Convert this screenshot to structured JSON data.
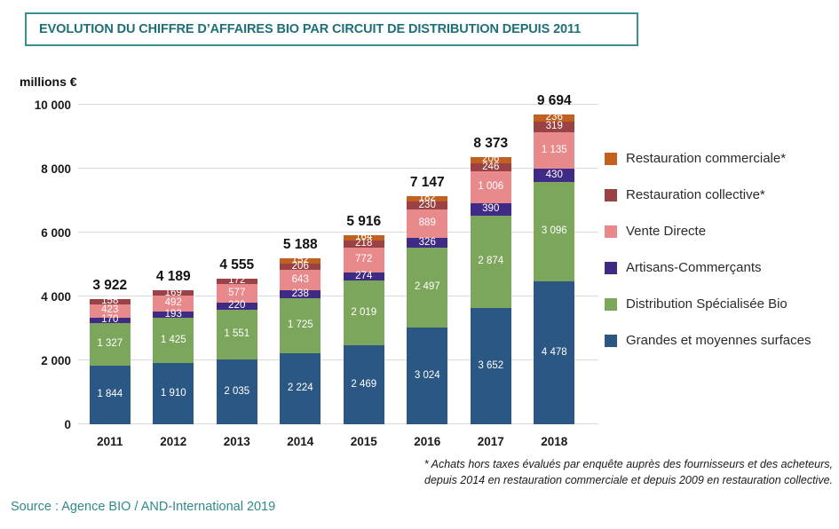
{
  "header": {
    "title": "EVOLUTION DU CHIFFRE D’AFFAIRES BIO PAR CIRCUIT DE DISTRIBUTION DEPUIS 2011"
  },
  "chart_data": {
    "type": "bar",
    "subtype": "stacked-vertical",
    "unit_label": "millions €",
    "categories": [
      "2011",
      "2012",
      "2013",
      "2014",
      "2015",
      "2016",
      "2017",
      "2018"
    ],
    "totals": [
      3922,
      4189,
      4555,
      5188,
      5916,
      7147,
      8373,
      9694
    ],
    "series": [
      {
        "name": "Grandes et moyennes surfaces",
        "color": "#2b5784",
        "values": [
          1844,
          1910,
          2035,
          2224,
          2469,
          3024,
          3652,
          4478
        ]
      },
      {
        "name": "Distribution Spécialisée Bio",
        "color": "#7ca65b",
        "values": [
          1327,
          1425,
          1551,
          1725,
          2019,
          2497,
          2874,
          3096
        ]
      },
      {
        "name": "Artisans-Commerçants",
        "color": "#3f2b86",
        "values": [
          170,
          193,
          220,
          238,
          274,
          326,
          390,
          430
        ]
      },
      {
        "name": "Vente Directe",
        "color": "#e8898c",
        "values": [
          423,
          492,
          577,
          643,
          772,
          889,
          1006,
          1135
        ]
      },
      {
        "name": "Restauration collective*",
        "color": "#9b4247",
        "values": [
          158,
          169,
          172,
          206,
          218,
          230,
          246,
          319
        ]
      },
      {
        "name": "Restauration commerciale*",
        "color": "#c2611f",
        "values": [
          0,
          0,
          0,
          152,
          164,
          182,
          206,
          236
        ]
      }
    ],
    "legend_position": "right",
    "legend_order_top_to_bottom": [
      "Restauration commerciale*",
      "Restauration collective*",
      "Vente Directe",
      "Artisans-Commerçants",
      "Distribution Spécialisée Bio",
      "Grandes et moyennes surfaces"
    ],
    "ylim": [
      0,
      10000
    ],
    "gridlines": [
      0,
      2000,
      4000,
      6000,
      8000,
      10000
    ],
    "y_ticks": [
      "10 000",
      "8 000",
      "6 000",
      "4 000",
      "2 000",
      "0"
    ],
    "grid": true
  },
  "footnote": "* Achats hors taxes évalués par enquête auprès des fournisseurs et des acheteurs,\ndepuis 2014 en restauration commerciale et  depuis 2009 en restauration collective.",
  "source": "Source : Agence BIO / AND-International 2019"
}
